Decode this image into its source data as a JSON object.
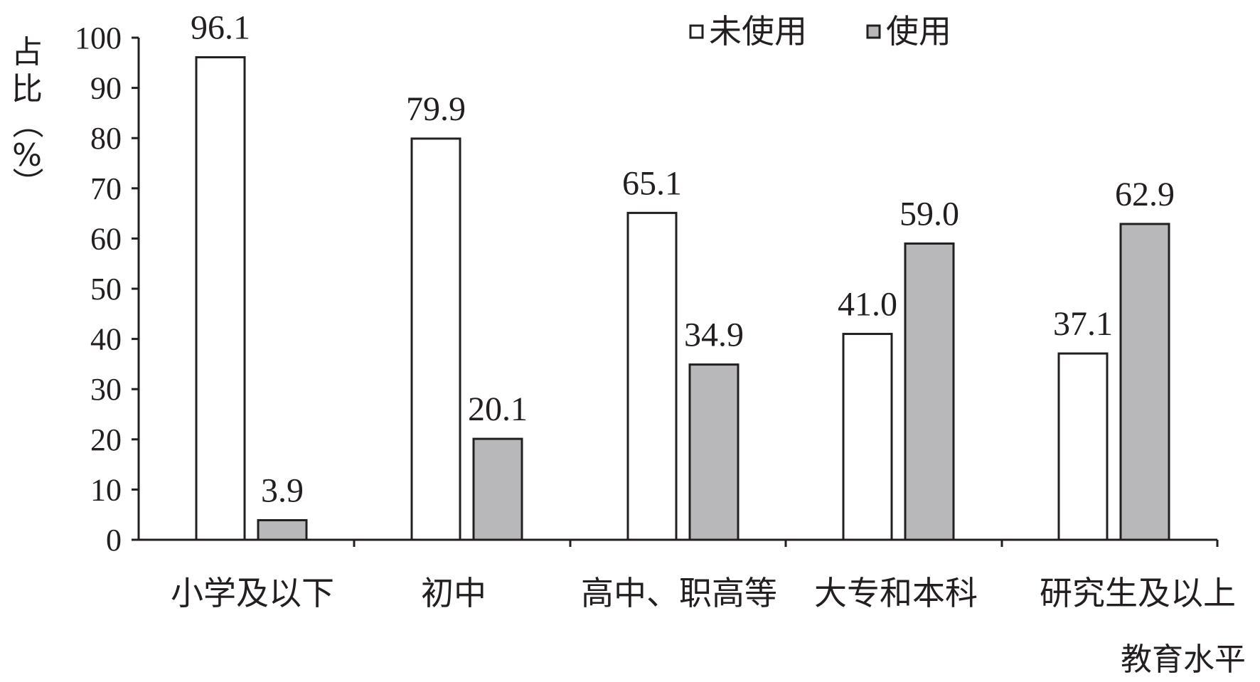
{
  "chart_data": {
    "type": "bar",
    "categories": [
      "小学及以下",
      "初中",
      "高中、职高等",
      "大专和本科",
      "研究生及以上"
    ],
    "series": [
      {
        "name": "未使用",
        "values": [
          96.1,
          79.9,
          65.1,
          41.0,
          37.1
        ],
        "color": "#ffffff"
      },
      {
        "name": "使用",
        "values": [
          3.9,
          20.1,
          34.9,
          59.0,
          62.9
        ],
        "color": "#b8b8bb"
      }
    ],
    "value_labels": [
      [
        "96.1",
        "79.9",
        "65.1",
        "41.0",
        "37.1"
      ],
      [
        "3.9",
        "20.1",
        "34.9",
        "59.0",
        "62.9"
      ]
    ],
    "ylabel_chars": [
      "占",
      "比",
      "（",
      "%",
      "）"
    ],
    "xlabel": "教育水平",
    "ylim": [
      0,
      100
    ],
    "yticks": [
      0,
      10,
      20,
      30,
      40,
      50,
      60,
      70,
      80,
      90,
      100
    ],
    "legend_position": "top-right",
    "grid": false,
    "stroke_color": "#231f20"
  }
}
